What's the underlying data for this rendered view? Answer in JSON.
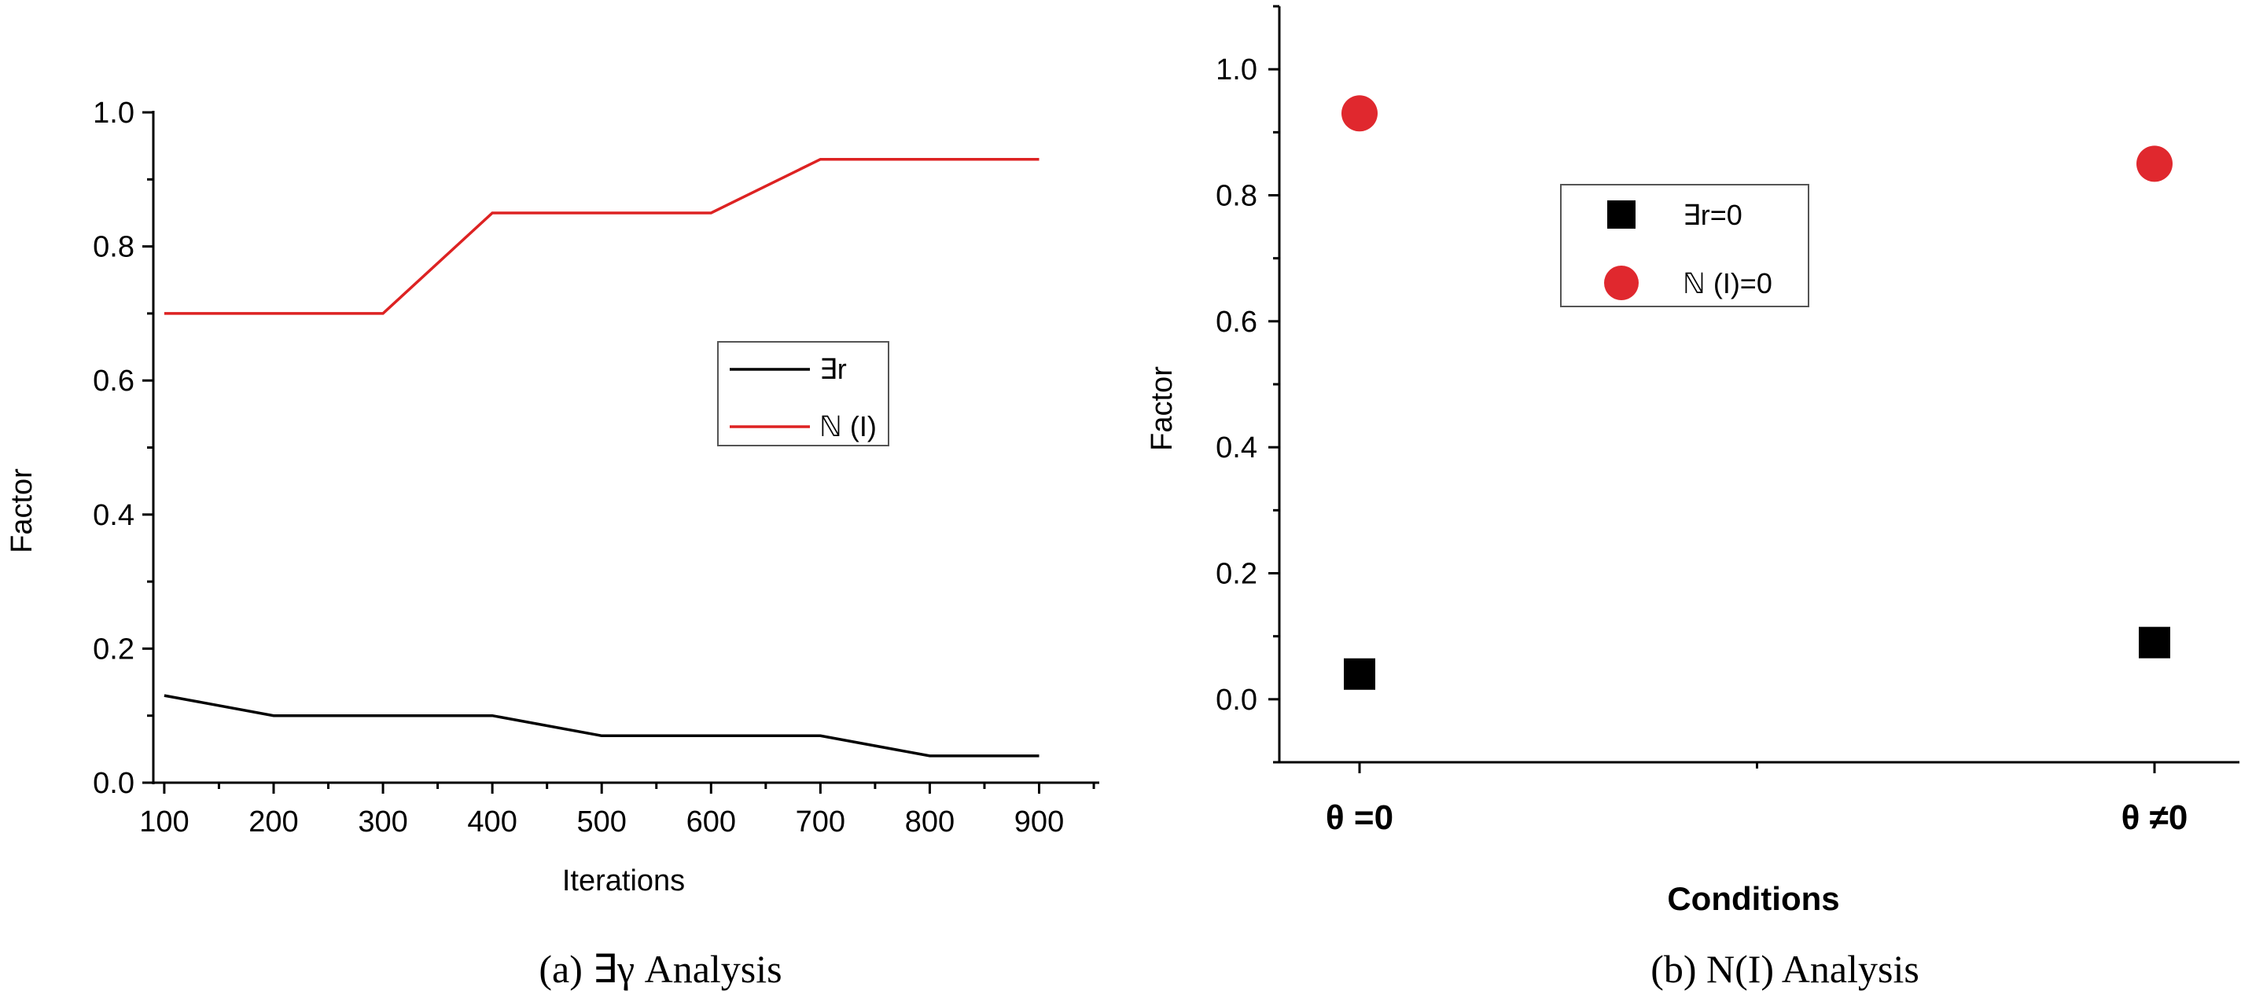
{
  "chart_data": [
    {
      "type": "line",
      "x": [
        100,
        200,
        300,
        400,
        500,
        600,
        700,
        800,
        900
      ],
      "xlabel": "Iterations",
      "ylabel": "Factor",
      "xticks": [
        "100",
        "200",
        "300",
        "400",
        "500",
        "600",
        "700",
        "800",
        "900"
      ],
      "yticks": [
        "0.0",
        "0.2",
        "0.4",
        "0.6",
        "0.8",
        "1.0"
      ],
      "xlim": [
        90,
        955
      ],
      "ylim": [
        0,
        1.0
      ],
      "legend_position": "center-right",
      "series": [
        {
          "name": "∃r",
          "color": "#000000",
          "values": [
            0.13,
            0.1,
            0.1,
            0.1,
            0.07,
            0.07,
            0.07,
            0.04,
            0.04
          ]
        },
        {
          "name": "ℕ (I)",
          "color": "#dd2222",
          "values": [
            0.7,
            0.7,
            0.7,
            0.85,
            0.85,
            0.85,
            0.93,
            0.93,
            0.93
          ]
        }
      ],
      "caption": "(a) ∃γ Analysis"
    },
    {
      "type": "scatter",
      "categories": [
        "θ =0",
        "θ ≠0"
      ],
      "xlabel": "Conditions",
      "ylabel": "Factor",
      "yticks": [
        "0.0",
        "0.2",
        "0.4",
        "0.6",
        "0.8",
        "1.0"
      ],
      "ylim": [
        -0.1,
        1.1
      ],
      "legend_position": "top-center",
      "series": [
        {
          "name": "∃r=0",
          "marker": "square",
          "color": "#000000",
          "values": [
            0.04,
            0.09
          ]
        },
        {
          "name": "ℕ (I)=0",
          "marker": "circle",
          "color": "#e0282e",
          "values": [
            0.93,
            0.85
          ]
        }
      ],
      "caption": "(b) N(I) Analysis"
    }
  ]
}
